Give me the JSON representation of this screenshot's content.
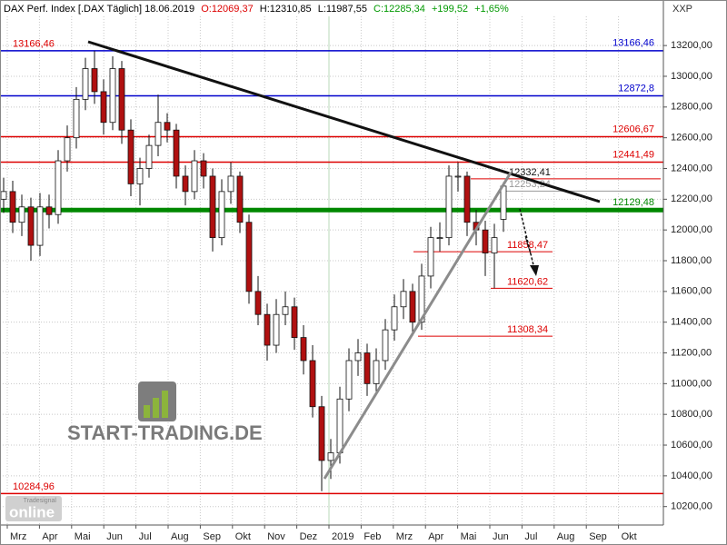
{
  "chart_data": {
    "type": "candlestick",
    "title": "DAX Perf. Index [.DAX  Täglich] 18.06.2019",
    "quote": {
      "open": "O:12069,37",
      "high": "H:12310,85",
      "low": "L:11987,55",
      "close": "C:12285,34",
      "change": "+199,52",
      "change_pct": "+1,65%"
    },
    "currency": "XXP",
    "watermark": "START-TRADING.DE",
    "logo": {
      "brand": "Tradesignal",
      "name": "online"
    },
    "months": [
      "Mrz",
      "Apr",
      "Mai",
      "Jun",
      "Jul",
      "Aug",
      "Sep",
      "Okt",
      "Nov",
      "Dez",
      "2019",
      "Feb",
      "Mrz",
      "Apr",
      "Mai",
      "Jun",
      "Jul",
      "Aug",
      "Sep",
      "Okt"
    ],
    "grid": true,
    "up_color": "#ffffff",
    "down_color": "#b01010",
    "ylim": [
      10080,
      13390
    ],
    "yticks": [
      {
        "value": 10200,
        "label": "10200,00"
      },
      {
        "value": 10400,
        "label": "10400,00"
      },
      {
        "value": 10600,
        "label": "10600,00"
      },
      {
        "value": 10800,
        "label": "10800,00"
      },
      {
        "value": 11000,
        "label": "11000,00"
      },
      {
        "value": 11200,
        "label": "11200,00"
      },
      {
        "value": 11400,
        "label": "11400,00"
      },
      {
        "value": 11600,
        "label": "11600,00"
      },
      {
        "value": 11800,
        "label": "11800,00"
      },
      {
        "value": 12000,
        "label": "12000,00"
      },
      {
        "value": 12200,
        "label": "12200,00"
      },
      {
        "value": 12400,
        "label": "12400,00"
      },
      {
        "value": 12600,
        "label": "12600,00"
      },
      {
        "value": 12800,
        "label": "12800,00"
      },
      {
        "value": 13000,
        "label": "13000,00"
      },
      {
        "value": 13200,
        "label": "13200,00"
      }
    ],
    "open": [
      12200,
      12250,
      12050,
      12150,
      11900,
      12150,
      12100,
      12450,
      12600,
      12850,
      13050,
      12900,
      12700,
      13050,
      12650,
      12300,
      12400,
      12550,
      12700,
      12650,
      12350,
      12250,
      12450,
      12350,
      11950,
      12250,
      12350,
      12050,
      11600,
      11450,
      11250,
      11450,
      11500,
      11300,
      11150,
      10850,
      10500,
      10550,
      10900,
      11150,
      11200,
      11000,
      11150,
      11350,
      11500,
      11600,
      11400,
      11700,
      11950,
      11950,
      12350,
      12350,
      12050,
      12000,
      11850,
      12069.37
    ],
    "high": [
      12340,
      12320,
      12230,
      12210,
      12240,
      12230,
      12520,
      12680,
      12930,
      13120,
      13166,
      12980,
      13130,
      13100,
      12720,
      12470,
      12620,
      12880,
      12760,
      12690,
      12420,
      12520,
      12500,
      12400,
      12330,
      12440,
      12380,
      12100,
      11700,
      11520,
      11550,
      11600,
      11560,
      11380,
      11250,
      10920,
      10640,
      10980,
      11230,
      11290,
      11260,
      11230,
      11420,
      11580,
      11680,
      11650,
      11780,
      12020,
      12050,
      12420,
      12440,
      12380,
      12130,
      12060,
      12040,
      12310.85
    ],
    "low": [
      12110,
      11980,
      11960,
      11800,
      11830,
      12010,
      12040,
      12380,
      12530,
      12780,
      12820,
      12620,
      12650,
      12560,
      12220,
      12160,
      12340,
      12480,
      12570,
      12270,
      12160,
      12200,
      12270,
      11860,
      11900,
      12170,
      11980,
      11520,
      11380,
      11150,
      11200,
      11380,
      11220,
      11060,
      10780,
      10300,
      10380,
      10480,
      10820,
      11050,
      10920,
      10950,
      11090,
      11280,
      11420,
      11310,
      11350,
      11620,
      11860,
      11900,
      12250,
      11960,
      11900,
      11700,
      11620,
      11987.55
    ],
    "close": [
      12250,
      12050,
      12150,
      11900,
      12150,
      12100,
      12450,
      12600,
      12850,
      13050,
      12900,
      12700,
      13050,
      12650,
      12300,
      12400,
      12550,
      12700,
      12650,
      12350,
      12250,
      12450,
      12350,
      11950,
      12250,
      12350,
      12050,
      11600,
      11450,
      11250,
      11450,
      11500,
      11300,
      11150,
      10850,
      10500,
      10550,
      10900,
      11150,
      11200,
      11000,
      11150,
      11350,
      11500,
      11600,
      11400,
      11700,
      11950,
      11950,
      12350,
      12350,
      12050,
      12000,
      11850,
      11950,
      12285.34
    ],
    "levels": [
      {
        "value": 13166.46,
        "label": "13166,46",
        "color": "#0000cc",
        "label_side": "both"
      },
      {
        "value": 12872.8,
        "label": "12872,8",
        "color": "#0000cc",
        "label_side": "right"
      },
      {
        "value": 12606.67,
        "label": "12606,67",
        "color": "#dd0000",
        "label_side": "right"
      },
      {
        "value": 12441.49,
        "label": "12441,49",
        "color": "#dd0000",
        "label_side": "right"
      },
      {
        "value": 12129.48,
        "label": "12129,48",
        "color": "#008800",
        "label_side": "right"
      },
      {
        "value": 10284.96,
        "label": "10284,96",
        "color": "#dd0000",
        "label_side": "left"
      }
    ],
    "short_levels": [
      {
        "value": 12332.41,
        "label": "12332,41",
        "color": "#dd0000"
      },
      {
        "value": 12253.24,
        "label": "12253,24",
        "color": "#999999"
      },
      {
        "value": 11858.47,
        "label": "11858,47",
        "color": "#dd0000"
      },
      {
        "value": 11620.62,
        "label": "11620,62",
        "color": "#dd0000"
      },
      {
        "value": 11308.34,
        "label": "11308,34",
        "color": "#dd0000"
      }
    ]
  }
}
